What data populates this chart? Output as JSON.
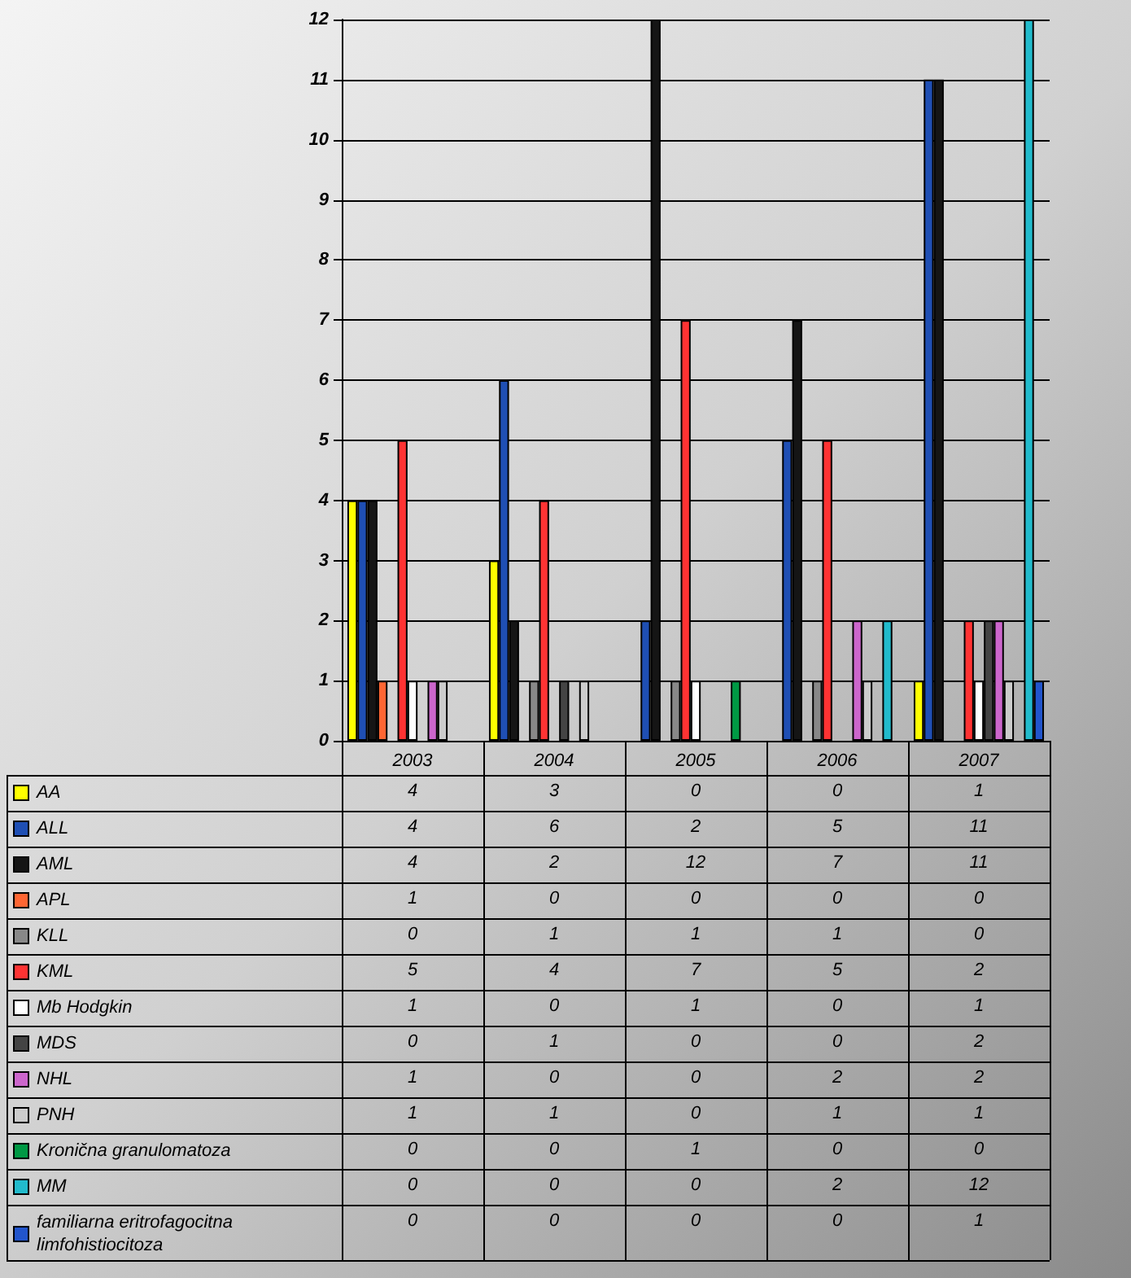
{
  "chart_data": {
    "type": "bar",
    "categories": [
      "2003",
      "2004",
      "2005",
      "2006",
      "2007"
    ],
    "series": [
      {
        "name": "AA",
        "color": "#ffff00",
        "values": [
          4,
          3,
          0,
          0,
          1
        ]
      },
      {
        "name": "ALL",
        "color": "#1f4fb4",
        "values": [
          4,
          6,
          2,
          5,
          11
        ]
      },
      {
        "name": "AML",
        "color": "#151515",
        "values": [
          4,
          2,
          12,
          7,
          11
        ]
      },
      {
        "name": "APL",
        "color": "#ff6633",
        "values": [
          1,
          0,
          0,
          0,
          0
        ]
      },
      {
        "name": "KLL",
        "color": "#888888",
        "values": [
          0,
          1,
          1,
          1,
          0
        ]
      },
      {
        "name": "KML",
        "color": "#ff3333",
        "values": [
          5,
          4,
          7,
          5,
          2
        ]
      },
      {
        "name": "Mb Hodgkin",
        "color": "#ffffff",
        "values": [
          1,
          0,
          1,
          0,
          1
        ]
      },
      {
        "name": "MDS",
        "color": "#444444",
        "values": [
          0,
          1,
          0,
          0,
          2
        ]
      },
      {
        "name": "NHL",
        "color": "#cc66cc",
        "values": [
          1,
          0,
          0,
          2,
          2
        ]
      },
      {
        "name": "PNH",
        "color": "#cccccc",
        "values": [
          1,
          1,
          0,
          1,
          1
        ]
      },
      {
        "name": "Kronična granulomatoza",
        "color": "#009944",
        "values": [
          0,
          0,
          1,
          0,
          0
        ]
      },
      {
        "name": "MM",
        "color": "#22bbcc",
        "values": [
          0,
          0,
          0,
          2,
          12
        ]
      },
      {
        "name": "familiarna eritrofagocitna limfohistiocitoza",
        "color": "#2255cc",
        "values": [
          0,
          0,
          0,
          0,
          1
        ]
      }
    ],
    "ylim": [
      0,
      12
    ],
    "yticks": [
      0,
      1,
      2,
      3,
      4,
      5,
      6,
      7,
      8,
      9,
      10,
      11,
      12
    ],
    "grid": "y",
    "legend": "bottom left",
    "data_labels": true
  }
}
